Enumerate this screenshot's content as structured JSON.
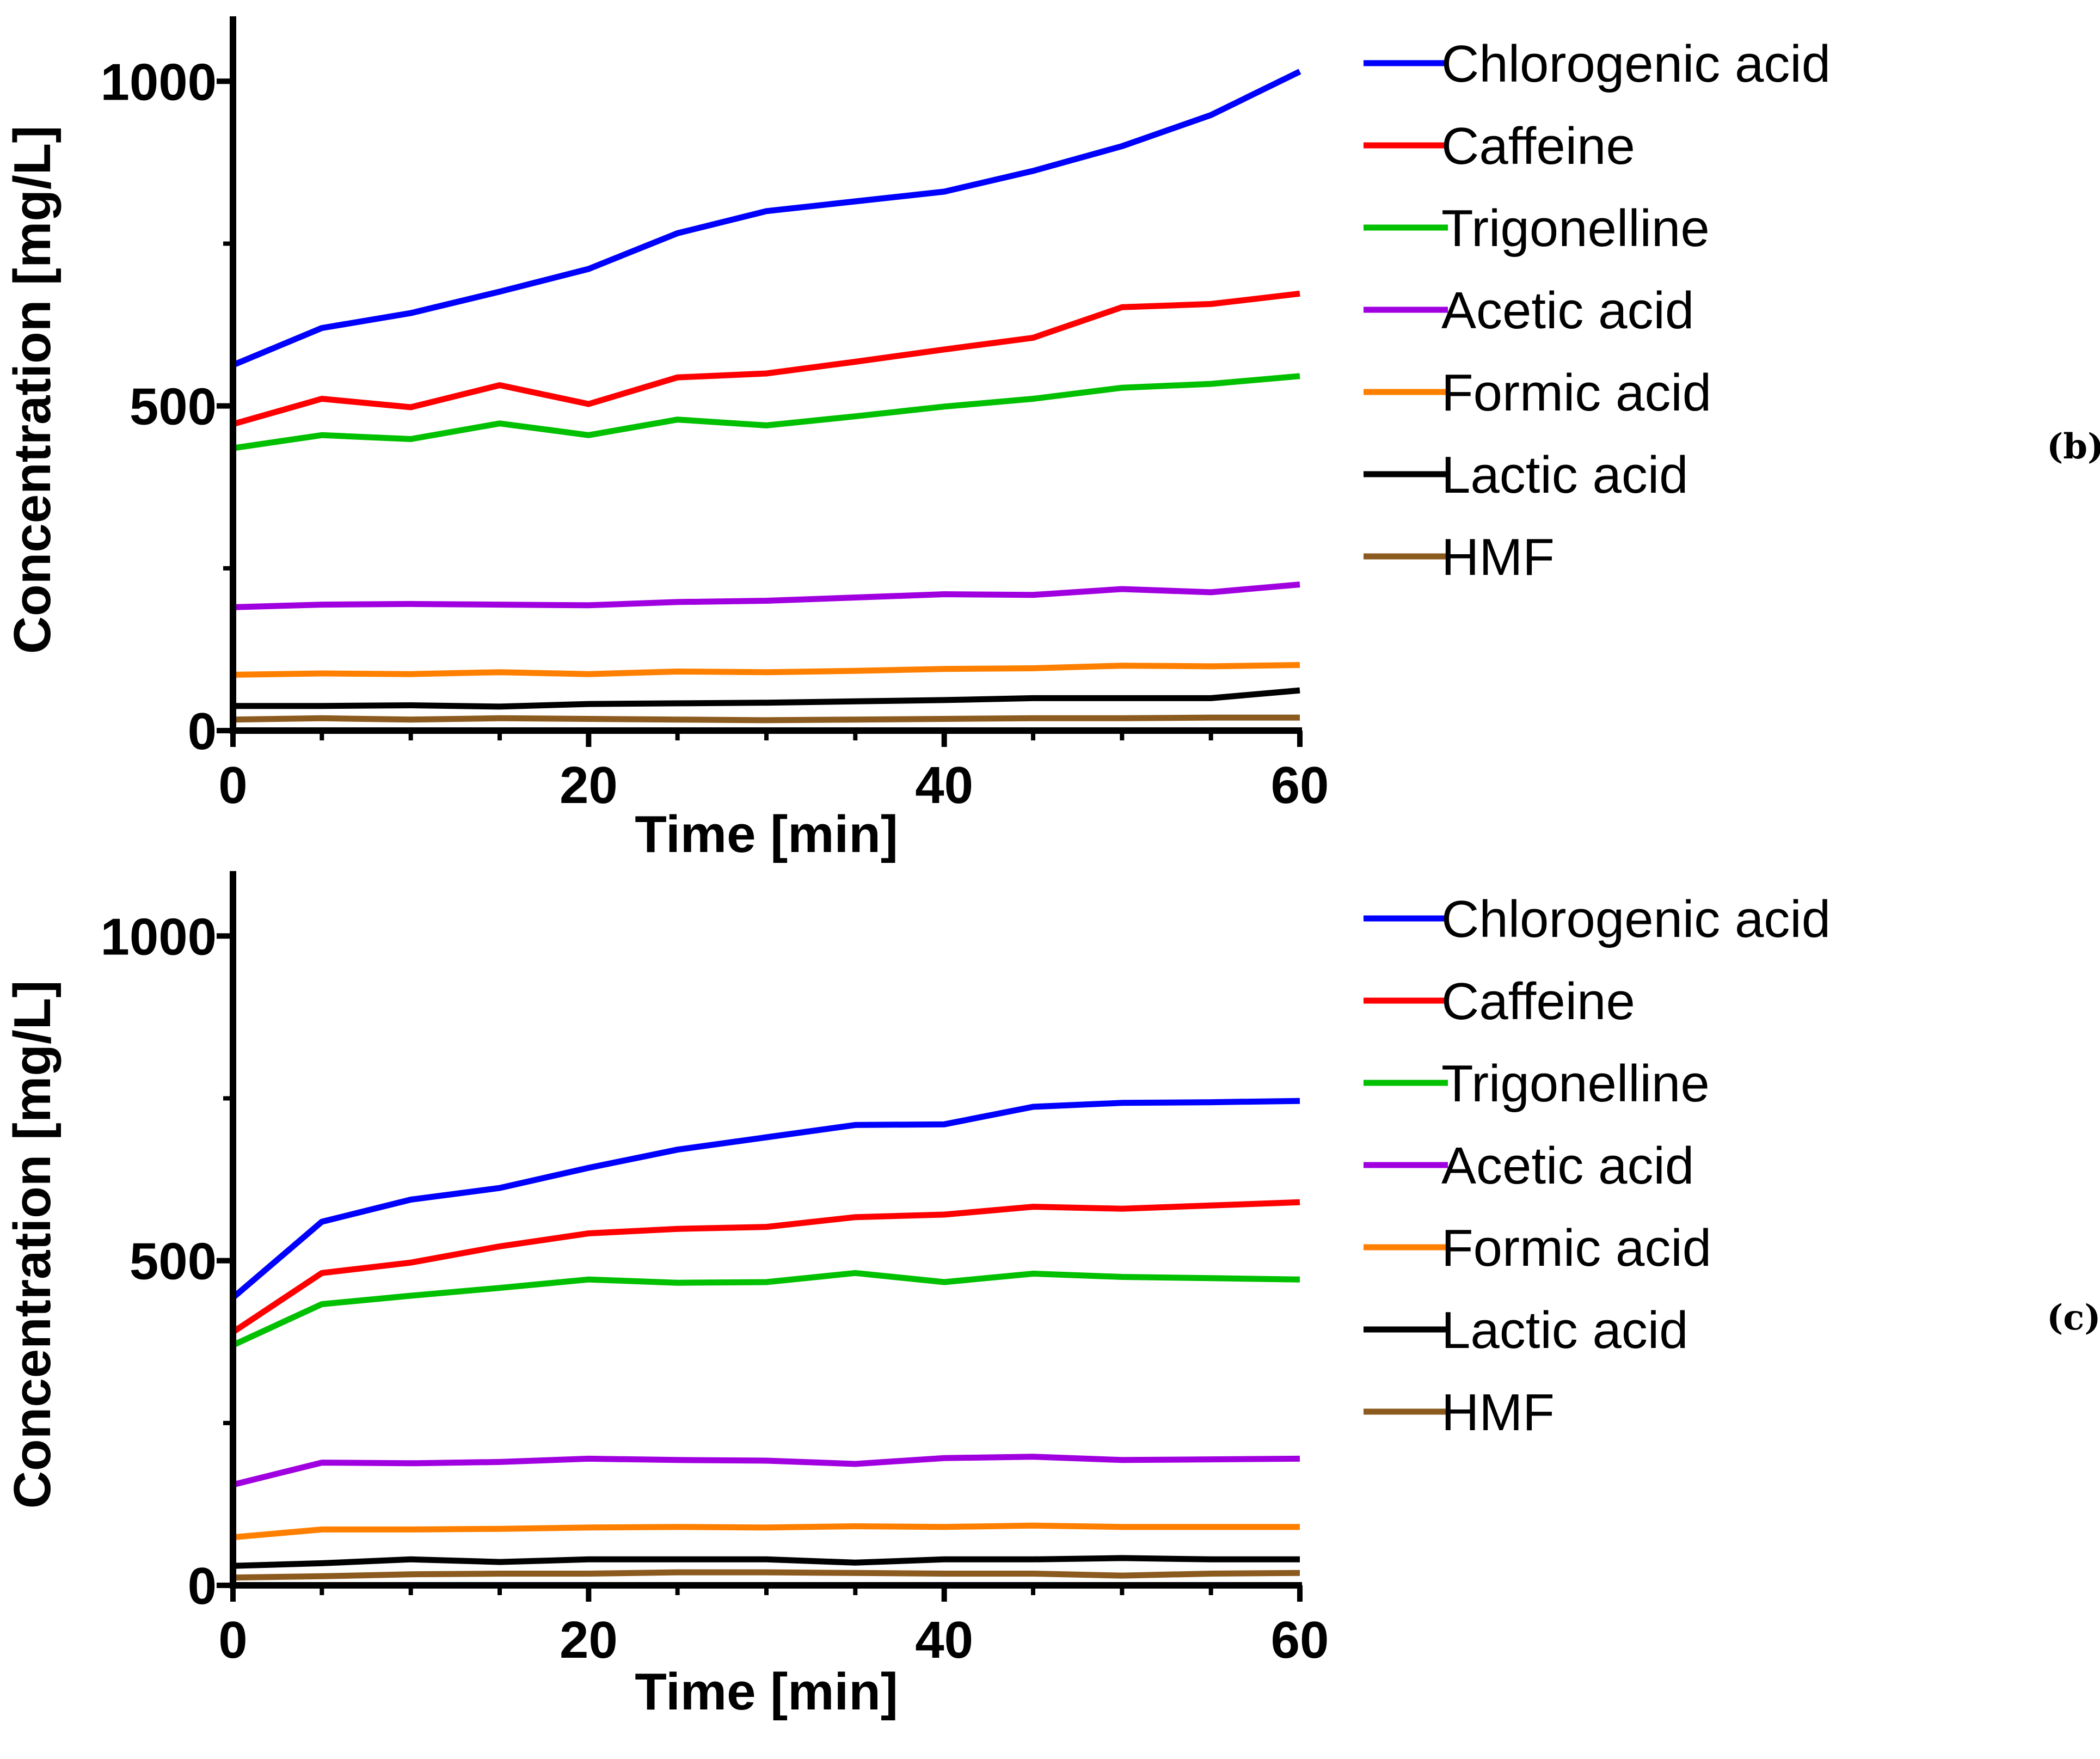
{
  "chart_data": [
    {
      "type": "line",
      "panel_label": "(b)",
      "xlabel": "Time [min]",
      "ylabel": "Concentration [mg/L]",
      "xlim": [
        0,
        60
      ],
      "ylim": [
        0,
        1100
      ],
      "xticks": [
        "0",
        "20",
        "40",
        "60"
      ],
      "yticks": [
        "0",
        "500",
        "1000"
      ],
      "legend_position": "right",
      "x": [
        0,
        5,
        10,
        15,
        20,
        25,
        30,
        35,
        40,
        45,
        50,
        55,
        60
      ],
      "series": [
        {
          "name": "Chlorogenic acid",
          "color": "#0000ff",
          "values": [
            563,
            620,
            643,
            676,
            711,
            766,
            800,
            815,
            830,
            862,
            900,
            948,
            1015
          ]
        },
        {
          "name": "Caffeine",
          "color": "#ff0000",
          "values": [
            472,
            511,
            498,
            532,
            503,
            544,
            550,
            568,
            587,
            605,
            652,
            657,
            673
          ]
        },
        {
          "name": "Trigonelline",
          "color": "#00c000",
          "values": [
            435,
            455,
            449,
            473,
            455,
            479,
            470,
            484,
            499,
            511,
            528,
            534,
            546
          ]
        },
        {
          "name": "Acetic acid",
          "color": "#a000e0",
          "values": [
            190,
            194,
            195,
            194,
            193,
            198,
            200,
            205,
            210,
            209,
            218,
            213,
            225
          ]
        },
        {
          "name": "Formic acid",
          "color": "#ff8000",
          "values": [
            86,
            88,
            87,
            90,
            87,
            91,
            90,
            92,
            95,
            96,
            100,
            99,
            101
          ]
        },
        {
          "name": "Lactic acid",
          "color": "#000000",
          "values": [
            38,
            38,
            39,
            37,
            41,
            42,
            43,
            45,
            47,
            50,
            50,
            50,
            62
          ]
        },
        {
          "name": "HMF",
          "color": "#8b5a1e",
          "values": [
            17,
            19,
            17,
            19,
            18,
            17,
            16,
            17,
            18,
            19,
            19,
            20,
            20
          ]
        }
      ]
    },
    {
      "type": "line",
      "panel_label": "(c)",
      "xlabel": "Time [min]",
      "ylabel": "Concentration [mg/L]",
      "xlim": [
        0,
        60
      ],
      "ylim": [
        0,
        1100
      ],
      "xticks": [
        "0",
        "20",
        "40",
        "60"
      ],
      "yticks": [
        "0",
        "500",
        "1000"
      ],
      "legend_position": "right",
      "x": [
        0,
        5,
        10,
        15,
        20,
        25,
        30,
        35,
        40,
        45,
        50,
        55,
        60
      ],
      "series": [
        {
          "name": "Chlorogenic acid",
          "color": "#0000ff",
          "values": [
            443,
            560,
            594,
            612,
            643,
            671,
            690,
            709,
            710,
            737,
            743,
            744,
            746
          ]
        },
        {
          "name": "Caffeine",
          "color": "#ff0000",
          "values": [
            390,
            481,
            497,
            522,
            542,
            549,
            552,
            567,
            571,
            583,
            580,
            585,
            590
          ]
        },
        {
          "name": "Trigonelline",
          "color": "#00c000",
          "values": [
            370,
            433,
            446,
            458,
            471,
            466,
            467,
            481,
            467,
            480,
            475,
            473,
            471
          ]
        },
        {
          "name": "Acetic acid",
          "color": "#a000e0",
          "values": [
            155,
            189,
            188,
            190,
            195,
            193,
            192,
            187,
            196,
            198,
            193,
            194,
            195
          ]
        },
        {
          "name": "Formic acid",
          "color": "#ff8000",
          "values": [
            74,
            86,
            86,
            87,
            89,
            90,
            89,
            91,
            90,
            92,
            90,
            90,
            90
          ]
        },
        {
          "name": "Lactic acid",
          "color": "#000000",
          "values": [
            30,
            34,
            40,
            36,
            40,
            40,
            40,
            35,
            40,
            40,
            42,
            40,
            40
          ]
        },
        {
          "name": "HMF",
          "color": "#8b5a1e",
          "values": [
            12,
            14,
            17,
            18,
            18,
            20,
            20,
            19,
            18,
            18,
            15,
            18,
            19
          ]
        }
      ]
    }
  ]
}
